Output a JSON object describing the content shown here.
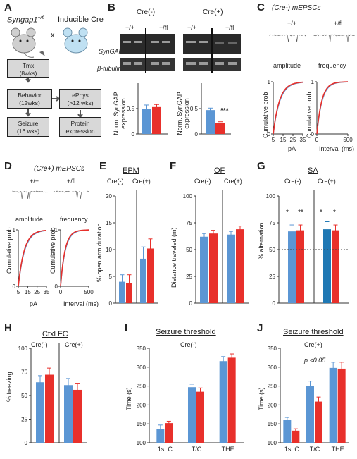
{
  "colors": {
    "wt": "#5b96d4",
    "het": "#e8302b",
    "wt_dark": "#1f78b4",
    "het_dark": "#e8302b"
  },
  "panels": {
    "A": "A",
    "B": "B",
    "C": "C",
    "D": "D",
    "E": "E",
    "F": "F",
    "G": "G",
    "H": "H",
    "I": "I",
    "J": "J"
  },
  "A": {
    "mouse1_label": "Syngap1",
    "mouse1_sup": "+/fl",
    "cross": "x",
    "mouse2_label": "Inducible Cre",
    "boxes": {
      "tmx": "Tmx\n(8wks)",
      "behavior": "Behavior\n(12wks)",
      "ephys": "ePhys\n(>12 wks)",
      "seizure": "Seizure\n(16 wks)",
      "protein": "Protein\nexpression"
    }
  },
  "B": {
    "cre_neg": "Cre(-)",
    "cre_pos": "Cre(+)",
    "wt": "+/+",
    "fl": "+/fl",
    "syngap": "SynGAP",
    "tubulin": "β-tubulin",
    "ylabel": "Norm. SynGAP expression",
    "stars": "***"
  },
  "C": {
    "title": "(Cre-) mEPSCs",
    "wt": "+/+",
    "fl": "+/fl",
    "amp": "amplitude",
    "freq": "frequency",
    "ylabel": "Cumulative prob",
    "xlabel_amp": "pA",
    "xlabel_freq": "Interval (ms)"
  },
  "D": {
    "title": "(Cre+) mEPSCs",
    "wt": "+/+",
    "fl": "+/fl",
    "amp": "amplitude",
    "freq": "frequency",
    "ylabel": "Cumulative prob",
    "xlabel_amp": "pA",
    "xlabel_freq": "Interval (ms)"
  },
  "E": {
    "title": "EPM",
    "cre_neg": "Cre(-)",
    "cre_pos": "Cre(+)",
    "ylabel": "% open arm duration"
  },
  "F": {
    "title": "OF",
    "cre_neg": "Cre(-)",
    "cre_pos": "Cre(+)",
    "ylabel": "Distance traveled (m)"
  },
  "G": {
    "title": "SA",
    "cre_neg": "Cre(-)",
    "cre_pos": "Cre(+)",
    "ylabel": "% alternation",
    "stars": [
      "*",
      "**",
      "*",
      "*"
    ]
  },
  "H": {
    "title": "Ctxl FC",
    "cre_neg": "Cre(-)",
    "cre_pos": "Cre(+)",
    "ylabel": "% freezing"
  },
  "I": {
    "title": "Seizure threshold",
    "group": "Cre(-)",
    "ylabel": "Time (s)"
  },
  "J": {
    "title": "Seizure threshold",
    "group": "Cre(+)",
    "ylabel": "Time (s)",
    "pval": "p <0.05"
  },
  "chart_data": [
    {
      "panel": "B-left",
      "type": "bar",
      "ylim": [
        0,
        1
      ],
      "yticks": [
        0,
        0.5
      ],
      "series": [
        {
          "values": [
            0.5,
            0.53
          ]
        }
      ],
      "errors": [
        0.07,
        0.05
      ]
    },
    {
      "panel": "B-right",
      "type": "bar",
      "ylim": [
        0,
        1
      ],
      "yticks": [
        0,
        0.5
      ],
      "series": [
        {
          "values": [
            0.47,
            0.21
          ]
        }
      ],
      "errors": [
        0.04,
        0.03
      ]
    },
    {
      "panel": "C-amplitude",
      "type": "line",
      "xlim": [
        5,
        35
      ],
      "ylim": [
        0,
        1
      ],
      "xticks": [
        5,
        15,
        25,
        35
      ],
      "yticks": [
        0,
        1
      ],
      "xlabel": "pA",
      "ylabel": "Cumulative prob"
    },
    {
      "panel": "C-frequency",
      "type": "line",
      "xlim": [
        0,
        500
      ],
      "ylim": [
        0,
        1
      ],
      "xticks": [
        0,
        500
      ],
      "yticks": [
        0,
        1
      ],
      "xlabel": "Interval (ms)",
      "ylabel": "Cumulative prob"
    },
    {
      "panel": "D-amplitude",
      "type": "line",
      "xlim": [
        5,
        35
      ],
      "ylim": [
        0,
        1
      ],
      "xticks": [
        5,
        15,
        25,
        35
      ],
      "yticks": [
        0,
        1
      ],
      "xlabel": "pA",
      "ylabel": "Cumulative prob"
    },
    {
      "panel": "D-frequency",
      "type": "line",
      "xlim": [
        0,
        500
      ],
      "ylim": [
        0,
        1
      ],
      "xticks": [
        0,
        500
      ],
      "yticks": [
        0,
        1
      ],
      "xlabel": "Interval (ms)",
      "ylabel": "Cumulative prob"
    },
    {
      "panel": "E",
      "type": "bar",
      "categories": [
        "Cre(-)",
        "Cre(+)"
      ],
      "ylim": [
        0,
        20
      ],
      "yticks": [
        0,
        5,
        10,
        15,
        20
      ],
      "series": [
        {
          "values": [
            4,
            8.3
          ]
        },
        {
          "values": [
            3.8,
            10.2
          ]
        }
      ],
      "errors": [
        [
          1.3,
          2.2
        ],
        [
          1.5,
          1.8
        ]
      ],
      "ylabel": "% open arm duration",
      "title": "EPM"
    },
    {
      "panel": "F",
      "type": "bar",
      "categories": [
        "Cre(-)",
        "Cre(+)"
      ],
      "ylim": [
        0,
        100
      ],
      "yticks": [
        0,
        25,
        50,
        75,
        100
      ],
      "series": [
        {
          "values": [
            62,
            64
          ]
        },
        {
          "values": [
            65,
            69
          ]
        }
      ],
      "errors": [
        [
          3,
          3
        ],
        [
          3,
          3
        ]
      ],
      "ylabel": "Distance traveled (m)",
      "title": "OF"
    },
    {
      "panel": "G",
      "type": "bar",
      "categories": [
        "Cre(-)",
        "Cre(+)"
      ],
      "ylim": [
        0,
        100
      ],
      "yticks": [
        0,
        25,
        50,
        75,
        100
      ],
      "series": [
        {
          "values": [
            67,
            69
          ]
        },
        {
          "values": [
            68,
            68
          ]
        }
      ],
      "errors": [
        [
          6,
          7
        ],
        [
          5,
          5
        ]
      ],
      "ylabel": "% alternation",
      "title": "SA"
    },
    {
      "panel": "H",
      "type": "bar",
      "categories": [
        "Cre(-)",
        "Cre(+)"
      ],
      "ylim": [
        0,
        100
      ],
      "yticks": [
        0,
        25,
        50,
        75,
        100
      ],
      "series": [
        {
          "values": [
            64,
            61
          ]
        },
        {
          "values": [
            72,
            56
          ]
        }
      ],
      "errors": [
        [
          7,
          7
        ],
        [
          7,
          7
        ]
      ],
      "ylabel": "% freezing",
      "title": "Ctxl FC"
    },
    {
      "panel": "I",
      "type": "bar",
      "categories": [
        "1st C",
        "T/C",
        "THE"
      ],
      "ylim": [
        100,
        350
      ],
      "yticks": [
        100,
        150,
        200,
        250,
        300,
        350
      ],
      "series": [
        {
          "values": [
            137,
            247,
            316
          ]
        },
        {
          "values": [
            152,
            235,
            325
          ]
        }
      ],
      "errors": [
        [
          10,
          8,
          12
        ],
        [
          5,
          10,
          10
        ]
      ],
      "ylabel": "Time (s)",
      "title": "Seizure threshold"
    },
    {
      "panel": "J",
      "type": "bar",
      "categories": [
        "1st C",
        "T/C",
        "THE"
      ],
      "ylim": [
        100,
        350
      ],
      "yticks": [
        100,
        150,
        200,
        250,
        300,
        350
      ],
      "series": [
        {
          "values": [
            160,
            250,
            298
          ]
        },
        {
          "values": [
            132,
            209,
            296
          ]
        }
      ],
      "errors": [
        [
          7,
          13,
          15
        ],
        [
          5,
          12,
          17
        ]
      ],
      "ylabel": "Time (s)",
      "title": "Seizure threshold"
    }
  ]
}
